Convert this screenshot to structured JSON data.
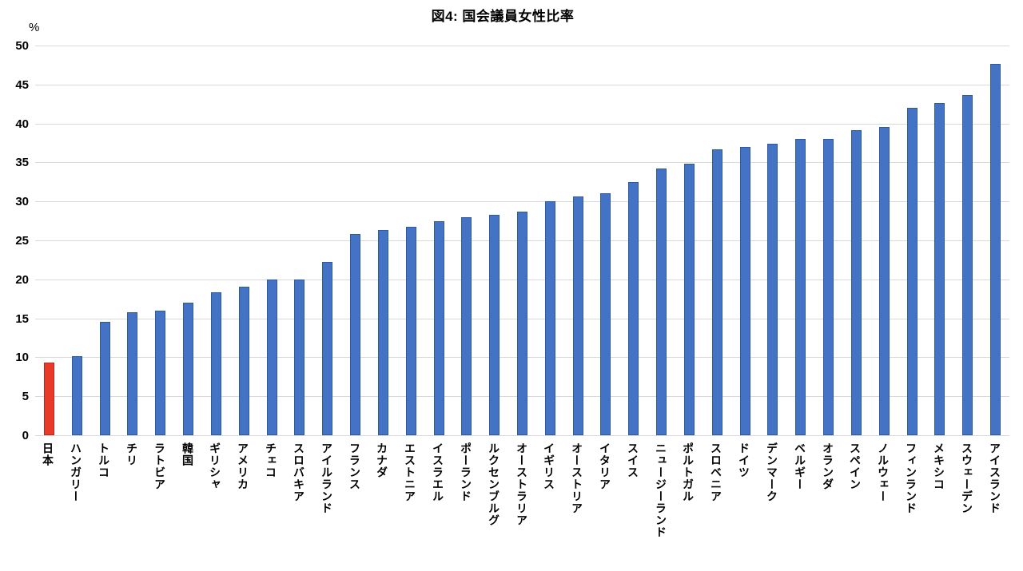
{
  "chart_data": {
    "type": "bar",
    "title": "図4: 国会議員女性比率",
    "ylabel": "%",
    "xlabel": "",
    "categories": [
      "日本",
      "ハンガリー",
      "トルコ",
      "チリ",
      "ラトビア",
      "韓国",
      "ギリシャ",
      "アメリカ",
      "チェコ",
      "スロバキア",
      "アイルランド",
      "フランス",
      "カナダ",
      "エストニア",
      "イスラエル",
      "ポーランド",
      "ルクセンブルグ",
      "オーストラリア",
      "イギリス",
      "オーストリア",
      "イタリア",
      "スイス",
      "ニュージーランド",
      "ポルトガル",
      "スロベニア",
      "ドイツ",
      "デンマーク",
      "ベルギー",
      "オランダ",
      "スペイン",
      "ノルウェー",
      "フィンランド",
      "メキシコ",
      "スウェーデン",
      "アイスランド"
    ],
    "values": [
      9.3,
      10.1,
      14.6,
      15.8,
      16.0,
      17.0,
      18.3,
      19.1,
      20.0,
      20.0,
      22.2,
      25.8,
      26.3,
      26.7,
      27.5,
      28.0,
      28.3,
      28.7,
      30.0,
      30.6,
      31.0,
      32.5,
      34.2,
      34.8,
      36.7,
      37.0,
      37.4,
      38.0,
      38.0,
      39.1,
      39.6,
      42.0,
      42.6,
      43.6,
      47.6
    ],
    "highlight_index": 0,
    "ylim": [
      0,
      50
    ],
    "ytick_step": 5,
    "yticks": [
      0,
      5,
      10,
      15,
      20,
      25,
      30,
      35,
      40,
      45,
      50
    ],
    "grid": true,
    "legend_position": "none",
    "colors": {
      "bar_fill": "#4472c4",
      "bar_border": "#2e5aa0",
      "highlight_fill": "#e8392b",
      "highlight_border": "#c02718",
      "gridline": "#d9d9d9",
      "axis_line": "#d9d9d9",
      "text": "#000000"
    }
  }
}
